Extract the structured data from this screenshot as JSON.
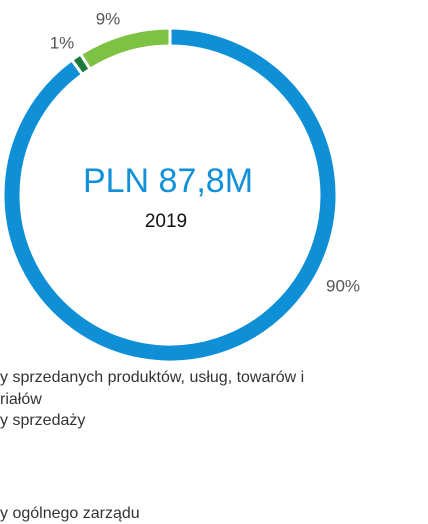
{
  "chart_data": {
    "type": "pie",
    "donut": true,
    "center_title": "PLN 87,8M",
    "center_subtitle": "2019",
    "series": [
      {
        "name": [
          "y sprzedanych produktów, usług, towarów i",
          "riałów"
        ],
        "color": "#0f8fd6",
        "values": [
          90
        ],
        "value_labels": [
          "90%"
        ]
      },
      {
        "name": [
          "y sprzedaży"
        ],
        "color": "#1e7a3a",
        "values": [
          1
        ],
        "value_labels": [
          "1%"
        ]
      },
      {
        "name": [
          "y ogólnego zarządu"
        ],
        "color": "#7dc242",
        "values": [
          9
        ],
        "value_labels": [
          "9%"
        ]
      }
    ]
  }
}
